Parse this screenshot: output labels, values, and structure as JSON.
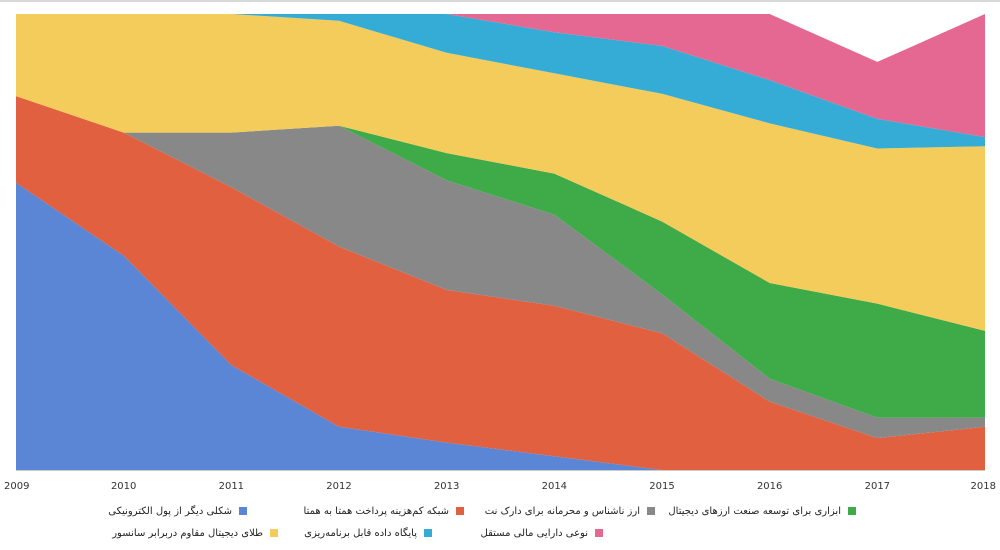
{
  "chart_data": {
    "type": "area",
    "stacked": "percent",
    "x": [
      2009,
      2010,
      2011,
      2012,
      2013,
      2014,
      2015,
      2016,
      2017,
      2018
    ],
    "x_tick_labels": [
      "2009",
      "2010",
      "2011",
      "2012",
      "2013",
      "2014",
      "2015",
      "2016",
      "2017",
      "2018"
    ],
    "ylim": [
      0,
      100
    ],
    "series": [
      {
        "name": "شکلی دیگر از پول الکترونیکی",
        "color": "#5b86d6",
        "values": [
          63,
          47,
          23,
          9.5,
          6,
          3,
          0,
          0,
          0,
          0
        ]
      },
      {
        "name": "شبکه کم‌هزینه پرداخت همتا به همتا",
        "color": "#e06040",
        "values": [
          19,
          27,
          39,
          39.5,
          33.5,
          33,
          30,
          15,
          7,
          9.5
        ]
      },
      {
        "name": "ارز ناشناس و محرمانه برای دارک نت",
        "color": "#888888",
        "values": [
          0,
          0,
          12,
          26.5,
          24,
          20,
          8.5,
          5,
          4.5,
          2
        ]
      },
      {
        "name": "ابزاری برای توسعه صنعت ارزهای دیجیتال",
        "color": "#3faa48",
        "values": [
          0,
          0,
          0,
          0,
          6,
          9,
          16,
          21,
          25,
          19
        ],
        "stack_order": "top_at_2010"
      },
      {
        "name": "طلای دیجیتال مقاوم دربرابر سانسور",
        "color": "#f4cc5b",
        "values": [
          18,
          26,
          26,
          23,
          22,
          22,
          28,
          35,
          34,
          40.5
        ]
      },
      {
        "name": "پایگاه داده قابل برنامه‌ریزی",
        "color": "#35acd5",
        "values": [
          0,
          0,
          0,
          1.5,
          8.5,
          9,
          10.5,
          9.5,
          6.5,
          2
        ]
      },
      {
        "name": "نوعی دارایی مالی مستقل",
        "color": "#e46892",
        "values": [
          0,
          0,
          0,
          0,
          0,
          4,
          7,
          14.5,
          12.5,
          27
        ]
      }
    ]
  },
  "legend": {
    "items": [
      "شکلی دیگر از پول الکترونیکی",
      "شبکه کم‌هزینه پرداخت همتا به همتا",
      "ارز ناشناس و محرمانه برای دارک نت",
      "ابزاری برای توسعه صنعت ارزهای دیجیتال",
      "طلای دیجیتال مقاوم دربرابر سانسور",
      "پایگاه داده قابل برنامه‌ریزی",
      "نوعی دارایی مالی مستقل"
    ],
    "colors": [
      "#5b86d6",
      "#e06040",
      "#888888",
      "#3faa48",
      "#f4cc5b",
      "#35acd5",
      "#e46892"
    ]
  }
}
